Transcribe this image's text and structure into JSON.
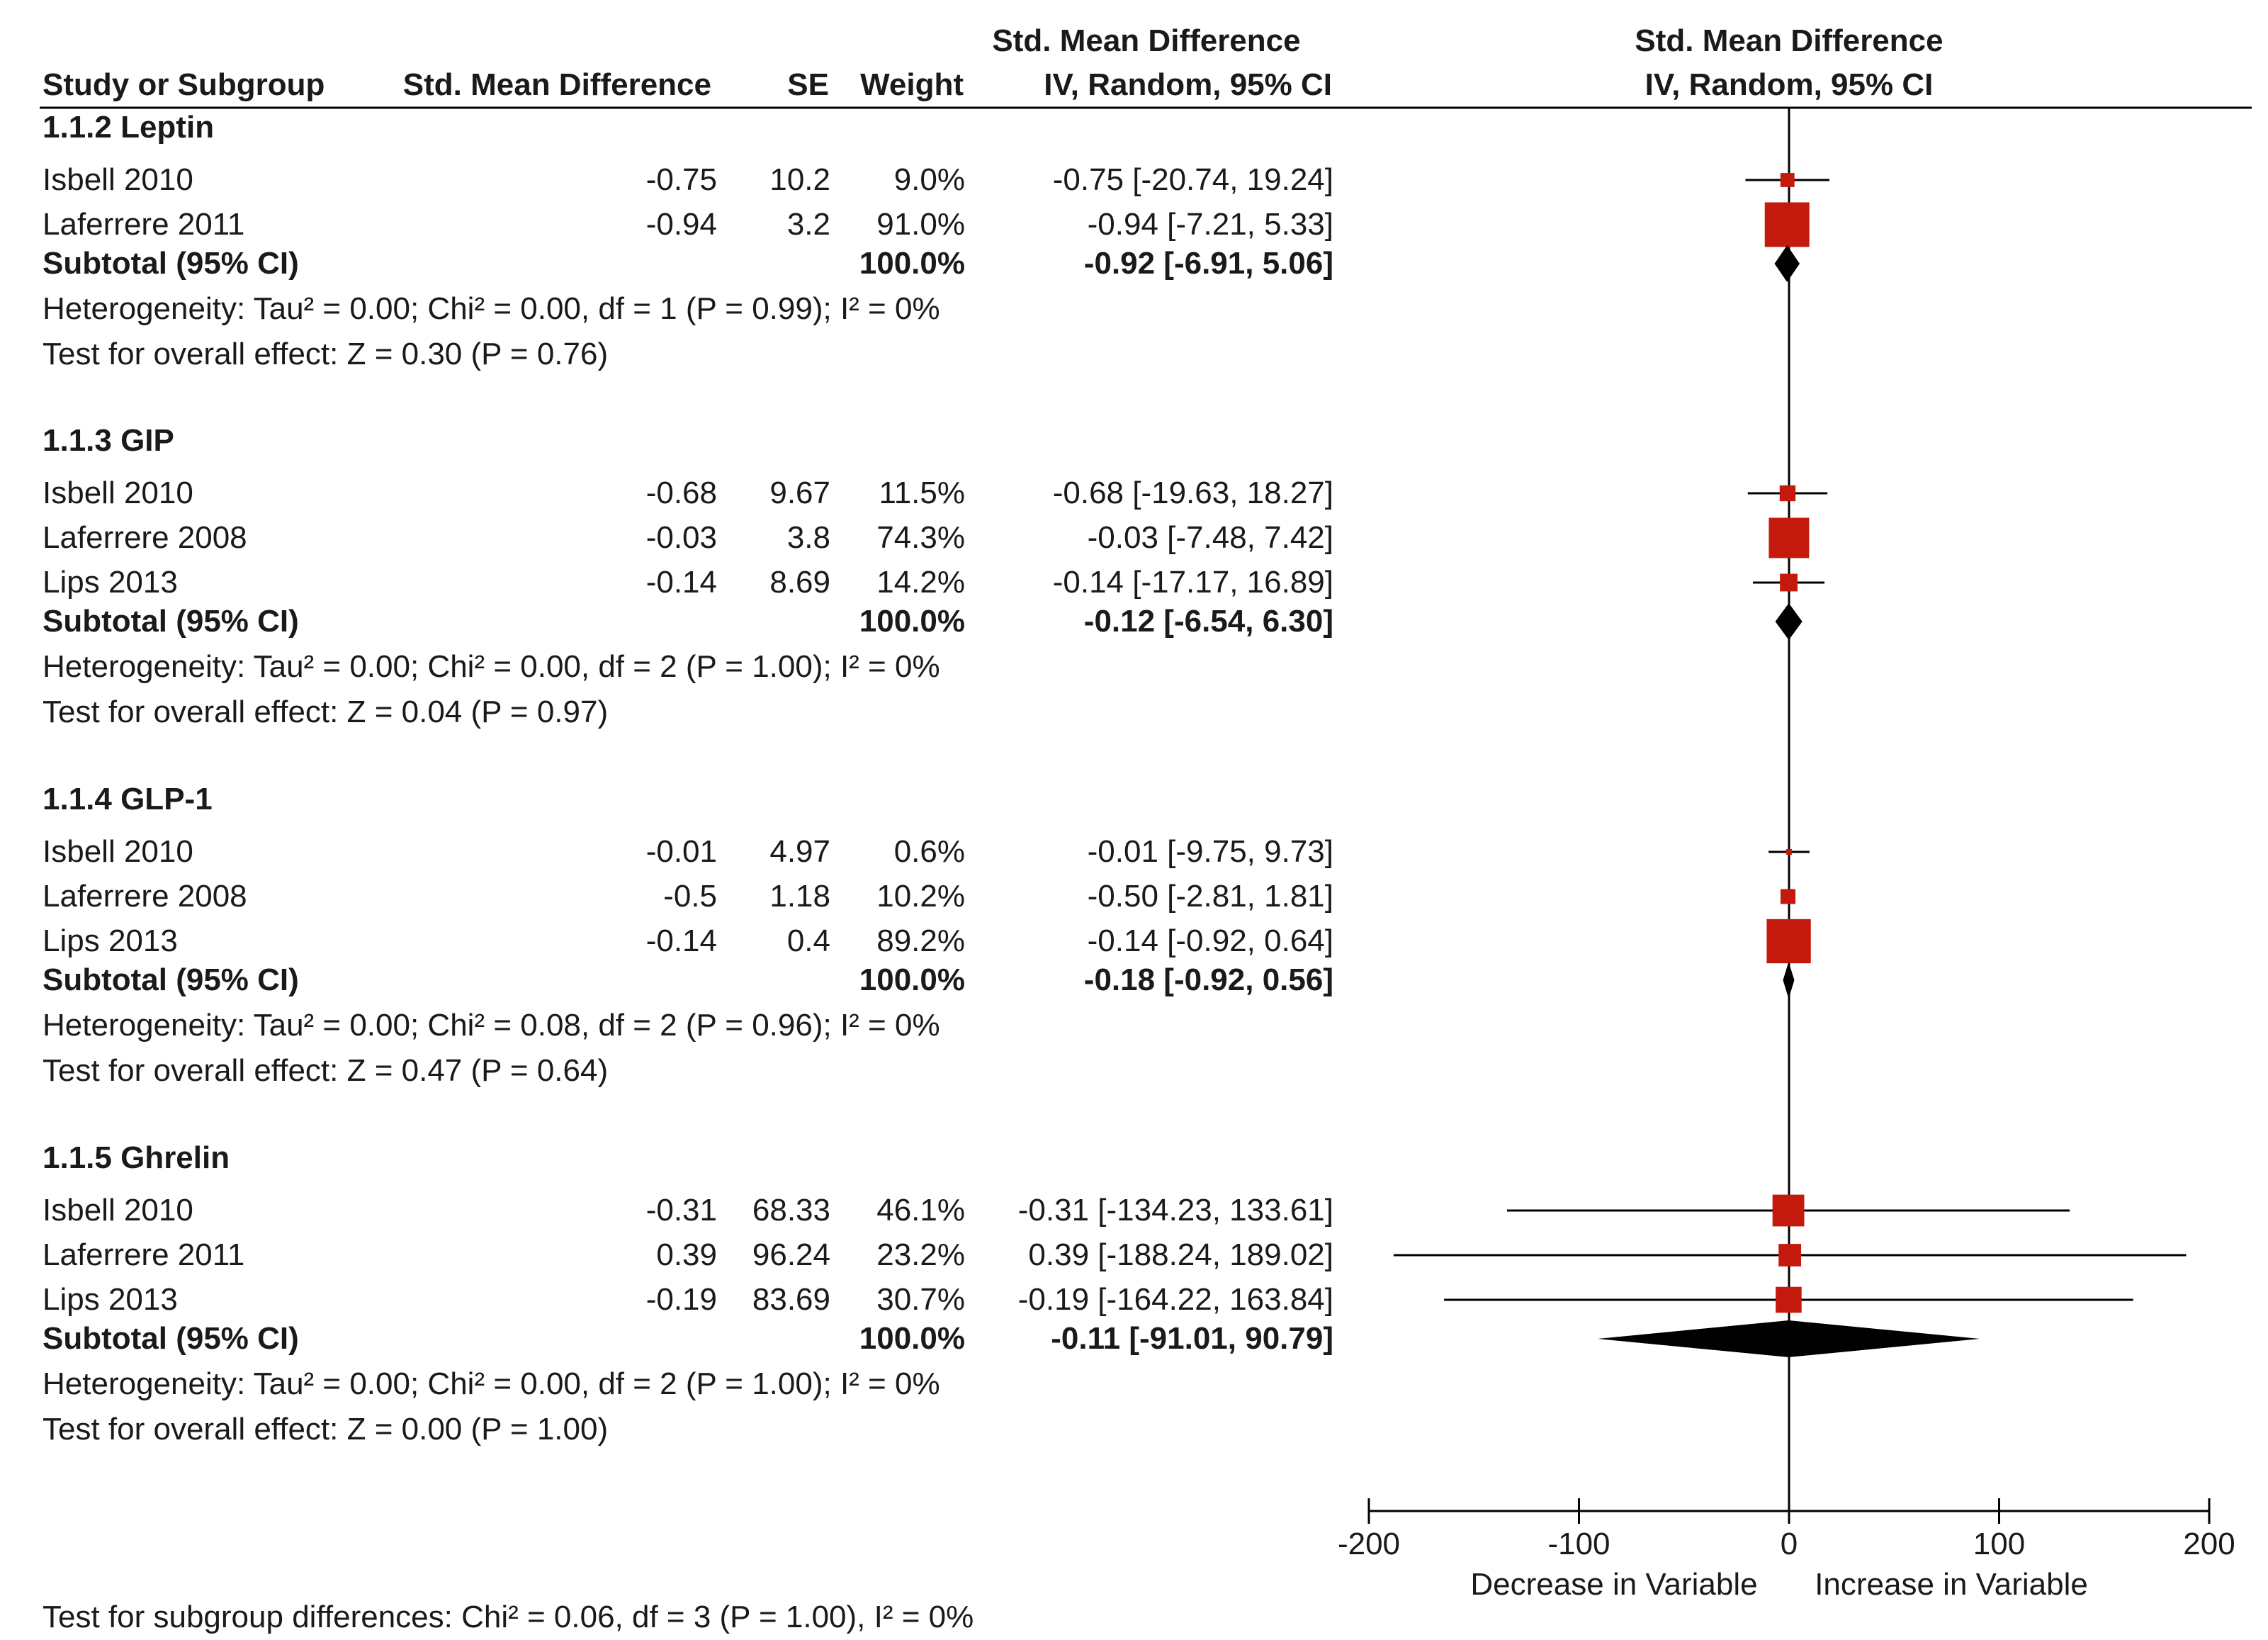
{
  "header": {
    "effect_title": "Std. Mean Difference",
    "study_col": "Study or Subgroup",
    "smd_col": "Std. Mean Difference",
    "se_col": "SE",
    "weight_col": "Weight",
    "ci_col": "IV, Random, 95% CI",
    "plot_title": "Std. Mean Difference",
    "plot_method": "IV, Random, 95% CI"
  },
  "groups": [
    {
      "title": "1.1.2 Leptin",
      "studies": [
        {
          "name": "Isbell 2010",
          "smd": "-0.75",
          "se": "10.2",
          "weight": "9.0%",
          "ci": "-0.75 [-20.74, 19.24]"
        },
        {
          "name": "Laferrere 2011",
          "smd": "-0.94",
          "se": "3.2",
          "weight": "91.0%",
          "ci": "-0.94 [-7.21, 5.33]"
        }
      ],
      "subtotal": {
        "label": "Subtotal (95% CI)",
        "weight": "100.0%",
        "ci": "-0.92 [-6.91, 5.06]"
      },
      "heterogeneity": "Heterogeneity: Tau² = 0.00; Chi² = 0.00, df = 1 (P = 0.99); I² = 0%",
      "overall": "Test for overall effect: Z = 0.30 (P = 0.76)"
    },
    {
      "title": "1.1.3 GIP",
      "studies": [
        {
          "name": "Isbell 2010",
          "smd": "-0.68",
          "se": "9.67",
          "weight": "11.5%",
          "ci": "-0.68 [-19.63, 18.27]"
        },
        {
          "name": "Laferrere 2008",
          "smd": "-0.03",
          "se": "3.8",
          "weight": "74.3%",
          "ci": "-0.03 [-7.48, 7.42]"
        },
        {
          "name": "Lips 2013",
          "smd": "-0.14",
          "se": "8.69",
          "weight": "14.2%",
          "ci": "-0.14 [-17.17, 16.89]"
        }
      ],
      "subtotal": {
        "label": "Subtotal (95% CI)",
        "weight": "100.0%",
        "ci": "-0.12 [-6.54, 6.30]"
      },
      "heterogeneity": "Heterogeneity: Tau² = 0.00; Chi² = 0.00, df = 2 (P = 1.00); I² = 0%",
      "overall": "Test for overall effect: Z = 0.04 (P = 0.97)"
    },
    {
      "title": "1.1.4 GLP-1",
      "studies": [
        {
          "name": "Isbell 2010",
          "smd": "-0.01",
          "se": "4.97",
          "weight": "0.6%",
          "ci": "-0.01 [-9.75, 9.73]"
        },
        {
          "name": "Laferrere 2008",
          "smd": "-0.5",
          "se": "1.18",
          "weight": "10.2%",
          "ci": "-0.50 [-2.81, 1.81]"
        },
        {
          "name": "Lips 2013",
          "smd": "-0.14",
          "se": "0.4",
          "weight": "89.2%",
          "ci": "-0.14 [-0.92, 0.64]"
        }
      ],
      "subtotal": {
        "label": "Subtotal (95% CI)",
        "weight": "100.0%",
        "ci": "-0.18 [-0.92, 0.56]"
      },
      "heterogeneity": "Heterogeneity: Tau² = 0.00; Chi² = 0.08, df = 2 (P = 0.96); I² = 0%",
      "overall": "Test for overall effect: Z = 0.47 (P = 0.64)"
    },
    {
      "title": "1.1.5 Ghrelin",
      "studies": [
        {
          "name": "Isbell 2010",
          "smd": "-0.31",
          "se": "68.33",
          "weight": "46.1%",
          "ci": "-0.31 [-134.23, 133.61]"
        },
        {
          "name": "Laferrere 2011",
          "smd": "0.39",
          "se": "96.24",
          "weight": "23.2%",
          "ci": "0.39 [-188.24, 189.02]"
        },
        {
          "name": "Lips 2013",
          "smd": "-0.19",
          "se": "83.69",
          "weight": "30.7%",
          "ci": "-0.19 [-164.22, 163.84]"
        }
      ],
      "subtotal": {
        "label": "Subtotal (95% CI)",
        "weight": "100.0%",
        "ci": "-0.11 [-91.01, 90.79]"
      },
      "heterogeneity": "Heterogeneity: Tau² = 0.00; Chi² = 0.00, df = 2 (P = 1.00); I² = 0%",
      "overall": "Test for overall effect: Z = 0.00 (P = 1.00)"
    }
  ],
  "footer": "Test for subgroup differences: Chi² = 0.06, df = 3 (P = 1.00), I² = 0%",
  "colors": {
    "study_marker": "#c41a0e",
    "diamond": "#000000",
    "line": "#000000",
    "text": "#1a1a1a"
  },
  "chart_data": {
    "type": "forest",
    "title": "Std. Mean Difference",
    "subtitle": "IV, Random, 95% CI",
    "xlabel_left": "Decrease in Variable",
    "xlabel_right": "Increase in Variable",
    "xlim": [
      -200,
      200
    ],
    "xticks": [
      -200,
      -100,
      0,
      100,
      200
    ],
    "tick_labels": [
      "-200",
      "-100",
      "0",
      "100",
      "200"
    ],
    "groups": [
      {
        "name": "1.1.2 Leptin",
        "studies": [
          {
            "study": "Isbell 2010",
            "est": -0.75,
            "lo": -20.74,
            "hi": 19.24,
            "weight": 9.0
          },
          {
            "study": "Laferrere 2011",
            "est": -0.94,
            "lo": -7.21,
            "hi": 5.33,
            "weight": 91.0
          }
        ],
        "subtotal": {
          "est": -0.92,
          "lo": -6.91,
          "hi": 5.06
        }
      },
      {
        "name": "1.1.3 GIP",
        "studies": [
          {
            "study": "Isbell 2010",
            "est": -0.68,
            "lo": -19.63,
            "hi": 18.27,
            "weight": 11.5
          },
          {
            "study": "Laferrere 2008",
            "est": -0.03,
            "lo": -7.48,
            "hi": 7.42,
            "weight": 74.3
          },
          {
            "study": "Lips 2013",
            "est": -0.14,
            "lo": -17.17,
            "hi": 16.89,
            "weight": 14.2
          }
        ],
        "subtotal": {
          "est": -0.12,
          "lo": -6.54,
          "hi": 6.3
        }
      },
      {
        "name": "1.1.4 GLP-1",
        "studies": [
          {
            "study": "Isbell 2010",
            "est": -0.01,
            "lo": -9.75,
            "hi": 9.73,
            "weight": 0.6
          },
          {
            "study": "Laferrere 2008",
            "est": -0.5,
            "lo": -2.81,
            "hi": 1.81,
            "weight": 10.2
          },
          {
            "study": "Lips 2013",
            "est": -0.14,
            "lo": -0.92,
            "hi": 0.64,
            "weight": 89.2
          }
        ],
        "subtotal": {
          "est": -0.18,
          "lo": -0.92,
          "hi": 0.56
        }
      },
      {
        "name": "1.1.5 Ghrelin",
        "studies": [
          {
            "study": "Isbell 2010",
            "est": -0.31,
            "lo": -134.23,
            "hi": 133.61,
            "weight": 46.1
          },
          {
            "study": "Laferrere 2011",
            "est": 0.39,
            "lo": -188.24,
            "hi": 189.02,
            "weight": 23.2
          },
          {
            "study": "Lips 2013",
            "est": -0.19,
            "lo": -164.22,
            "hi": 163.84,
            "weight": 30.7
          }
        ],
        "subtotal": {
          "est": -0.11,
          "lo": -91.01,
          "hi": 90.79
        }
      }
    ]
  }
}
